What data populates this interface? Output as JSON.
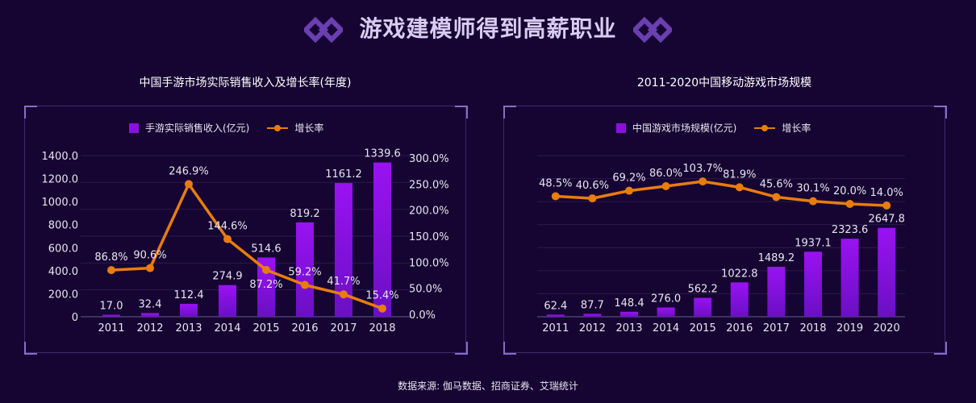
{
  "page_title": "游戏建模师得到高薪职业",
  "footer": "数据来源: 伽马数据、招商证券、艾瑞统计",
  "colors": {
    "background": "#160532",
    "bar": "#8a10e0",
    "line": "#e87d0d",
    "title": "#d9ccf2"
  },
  "icons": {
    "title_decoration": "double-diamond-icon"
  },
  "chart_data": [
    {
      "type": "bar+line",
      "title": "中国手游市场实际销售收入及增长率(年度)",
      "legend_position": "top",
      "grid": true,
      "categories": [
        "2011",
        "2012",
        "2013",
        "2014",
        "2015",
        "2016",
        "2017",
        "2018"
      ],
      "series": [
        {
          "name": "手游实际销售收入(亿元)",
          "type": "bar",
          "axis": "left",
          "values": [
            17.0,
            32.4,
            112.4,
            274.9,
            514.6,
            819.2,
            1161.2,
            1339.6
          ],
          "labels": [
            "17.0",
            "32.4",
            "112.4",
            "274.9",
            "514.6",
            "819.2",
            "1161.2",
            "1339.6"
          ]
        },
        {
          "name": "增长率",
          "type": "line",
          "axis": "right",
          "values": [
            86.8,
            90.6,
            246.9,
            144.6,
            87.2,
            59.2,
            41.7,
            15.4
          ],
          "labels": [
            "86.8%",
            "90.6%",
            "246.9%",
            "144.6%",
            "87.2%",
            "59.2%",
            "41.7%",
            "15.4%"
          ]
        }
      ],
      "left_axis": {
        "ylim": [
          0,
          1400
        ],
        "ticks": [
          "0",
          "200.0",
          "400.0",
          "600.0",
          "800.0",
          "1000.0",
          "1200.0",
          "1400.0"
        ]
      },
      "right_axis": {
        "ylim": [
          0,
          300
        ],
        "ticks": [
          "0.0%",
          "50.0%",
          "100.0%",
          "150.0%",
          "200.0%",
          "250.0%",
          "300.0%"
        ]
      }
    },
    {
      "type": "bar+line",
      "title": "2011-2020中国移动游戏市场规模",
      "legend_position": "top",
      "grid": true,
      "categories": [
        "2011",
        "2012",
        "2013",
        "2014",
        "2015",
        "2016",
        "2017",
        "2018",
        "2019",
        "2020"
      ],
      "series": [
        {
          "name": "中国游戏市场规模(亿元)",
          "type": "bar",
          "axis": "left",
          "values": [
            62.4,
            87.7,
            148.4,
            276.0,
            562.2,
            1022.8,
            1489.2,
            1937.1,
            2323.6,
            2647.8
          ],
          "labels": [
            "62.4",
            "87.7",
            "148.4",
            "276.0",
            "562.2",
            "1022.8",
            "1489.2",
            "1937.1",
            "2323.6",
            "2647.8"
          ]
        },
        {
          "name": "增长率",
          "type": "line",
          "axis": "right",
          "values": [
            48.5,
            40.6,
            69.2,
            86.0,
            103.7,
            81.9,
            45.6,
            30.1,
            20.0,
            14.0
          ],
          "labels": [
            "48.5%",
            "40.6%",
            "69.2%",
            "86.0%",
            "103.7%",
            "81.9%",
            "45.6%",
            "30.1%",
            "20.0%",
            "14.0%"
          ]
        }
      ],
      "left_axis": {
        "ylim": [
          0,
          4800
        ],
        "hidden": true
      },
      "right_axis": {
        "ylim": [
          -400,
          200
        ],
        "hidden": true
      }
    }
  ]
}
